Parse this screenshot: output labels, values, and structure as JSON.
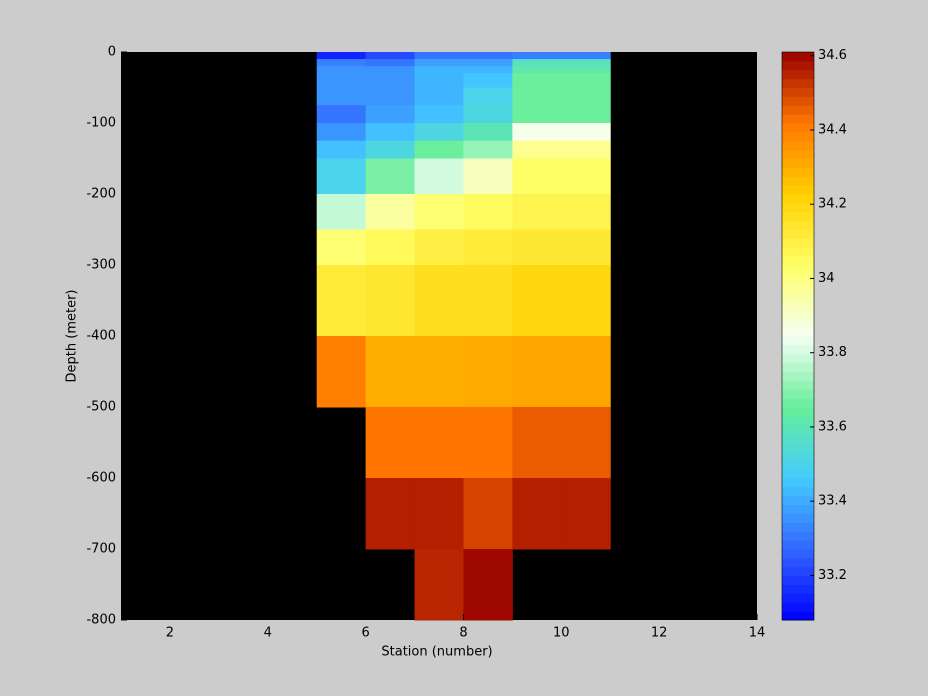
{
  "chart_data": {
    "type": "heatmap",
    "x_label": "Station (number)",
    "y_label": "Depth (meter)",
    "xlim": [
      1,
      14
    ],
    "xticks": [
      2,
      4,
      6,
      8,
      10,
      12,
      14
    ],
    "ylim": [
      -800,
      0
    ],
    "yticks": [
      0,
      -100,
      -200,
      -300,
      -400,
      -500,
      -600,
      -700,
      -800
    ],
    "background": "#000000",
    "x_edges": [
      5,
      6,
      7,
      8,
      9,
      10,
      11
    ],
    "y_edges": [
      0,
      -10,
      -20,
      -30,
      -50,
      -75,
      -100,
      -125,
      -150,
      -200,
      -250,
      -300,
      -400,
      -500,
      -600,
      -700,
      -800
    ],
    "values": [
      [
        33.15,
        33.22,
        33.3,
        33.3,
        33.32,
        33.32
      ],
      [
        33.32,
        33.3,
        33.38,
        33.38,
        33.58,
        33.58
      ],
      [
        33.36,
        33.36,
        33.42,
        33.42,
        33.62,
        33.62
      ],
      [
        33.36,
        33.36,
        33.42,
        33.45,
        33.66,
        33.66
      ],
      [
        33.36,
        33.36,
        33.42,
        33.5,
        33.66,
        33.66
      ],
      [
        33.3,
        33.38,
        33.44,
        33.52,
        33.66,
        33.66
      ],
      [
        33.36,
        33.44,
        33.52,
        33.6,
        33.86,
        33.86
      ],
      [
        33.44,
        33.52,
        33.66,
        33.72,
        33.98,
        33.98
      ],
      [
        33.5,
        33.68,
        33.8,
        33.92,
        34.04,
        34.04
      ],
      [
        33.78,
        33.96,
        34.02,
        34.05,
        34.08,
        34.08
      ],
      [
        34.02,
        34.06,
        34.1,
        34.12,
        34.13,
        34.13
      ],
      [
        34.12,
        34.14,
        34.17,
        34.17,
        34.2,
        34.2
      ],
      [
        34.4,
        34.3,
        34.3,
        34.31,
        34.32,
        34.32
      ],
      [
        null,
        34.42,
        34.42,
        34.42,
        34.46,
        34.46
      ],
      [
        null,
        34.56,
        34.56,
        34.5,
        34.56,
        34.56
      ],
      [
        null,
        null,
        34.55,
        34.6,
        null,
        null
      ]
    ],
    "clim": [
      33.08,
      34.61
    ],
    "cticks": [
      33.2,
      33.4,
      33.6,
      33.8,
      34,
      34.2,
      34.4,
      34.6
    ],
    "colormap": [
      "#0000ff",
      "#3366ff",
      "#44ccff",
      "#66ee99",
      "#f4fff4",
      "#ffff66",
      "#ffd000",
      "#ff7700",
      "#990000"
    ]
  }
}
